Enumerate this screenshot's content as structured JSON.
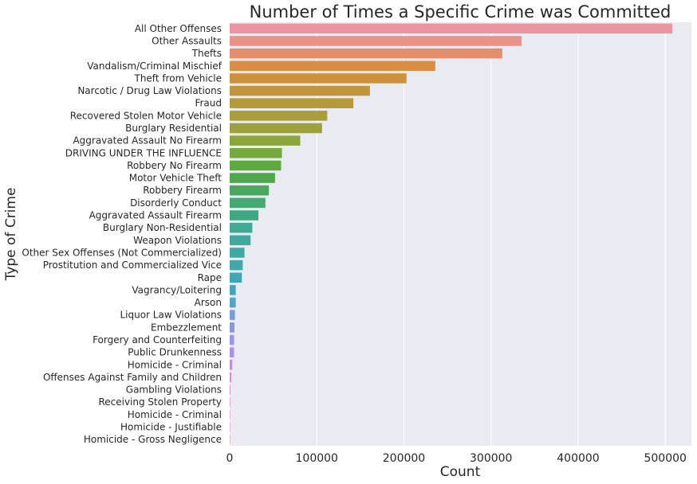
{
  "chart_data": {
    "type": "bar",
    "orientation": "horizontal",
    "title": "Number of Times a Specific Crime was Committed",
    "xlabel": "Count",
    "ylabel": "Type of Crime",
    "xlim": [
      0,
      530000
    ],
    "xticks": [
      0,
      100000,
      200000,
      300000,
      400000,
      500000
    ],
    "xtick_labels": [
      "0",
      "100000",
      "200000",
      "300000",
      "400000",
      "500000"
    ],
    "grid": true,
    "categories": [
      "All Other Offenses",
      "Other Assaults",
      "Thefts",
      "Vandalism/Criminal Mischief",
      "Theft from Vehicle",
      "Narcotic / Drug Law Violations",
      "Fraud",
      "Recovered Stolen Motor Vehicle",
      "Burglary Residential",
      "Aggravated Assault No Firearm",
      "DRIVING UNDER THE INFLUENCE",
      "Robbery No Firearm",
      "Motor Vehicle Theft",
      "Robbery Firearm",
      "Disorderly Conduct",
      "Aggravated Assault Firearm",
      "Burglary Non-Residential",
      "Weapon Violations",
      "Other Sex Offenses (Not Commercialized)",
      "Prostitution and Commercialized Vice",
      "Rape",
      "Vagrancy/Loitering",
      "Arson",
      "Liquor Law Violations",
      "Embezzlement",
      "Forgery and Counterfeiting",
      "Public Drunkenness",
      "Homicide - Criminal",
      "Offenses Against Family and Children",
      "Gambling Violations",
      "Receiving Stolen Property",
      "Homicide - Criminal ",
      "Homicide - Justifiable",
      "Homicide - Gross Negligence"
    ],
    "values": [
      508000,
      335000,
      313000,
      236000,
      203000,
      161000,
      142000,
      112000,
      106000,
      81000,
      60000,
      59000,
      52000,
      45000,
      41000,
      33000,
      26000,
      24000,
      17000,
      15000,
      14000,
      7000,
      7000,
      6000,
      5500,
      5000,
      5000,
      3000,
      2000,
      800,
      700,
      500,
      200,
      100
    ],
    "colors": [
      "#ea95a0",
      "#ea9286",
      "#e58e6c",
      "#da8e42",
      "#cd913c",
      "#c1953b",
      "#b59a3a",
      "#a89d3a",
      "#9ca13a",
      "#8aa539",
      "#74a93d",
      "#5faa40",
      "#4ea94d",
      "#47a85e",
      "#44a872",
      "#40a881",
      "#3faa91",
      "#3eaa9b",
      "#3daaa4",
      "#3ea8ad",
      "#3fa6b6",
      "#46a4c1",
      "#5aa2ce",
      "#719fd7",
      "#879ae0",
      "#9a96e6",
      "#ae90ea",
      "#c38de6",
      "#d48ae0",
      "#dd8ad1",
      "#e38cc4",
      "#e58eb8",
      "#e790ad",
      "#e893a4"
    ]
  }
}
